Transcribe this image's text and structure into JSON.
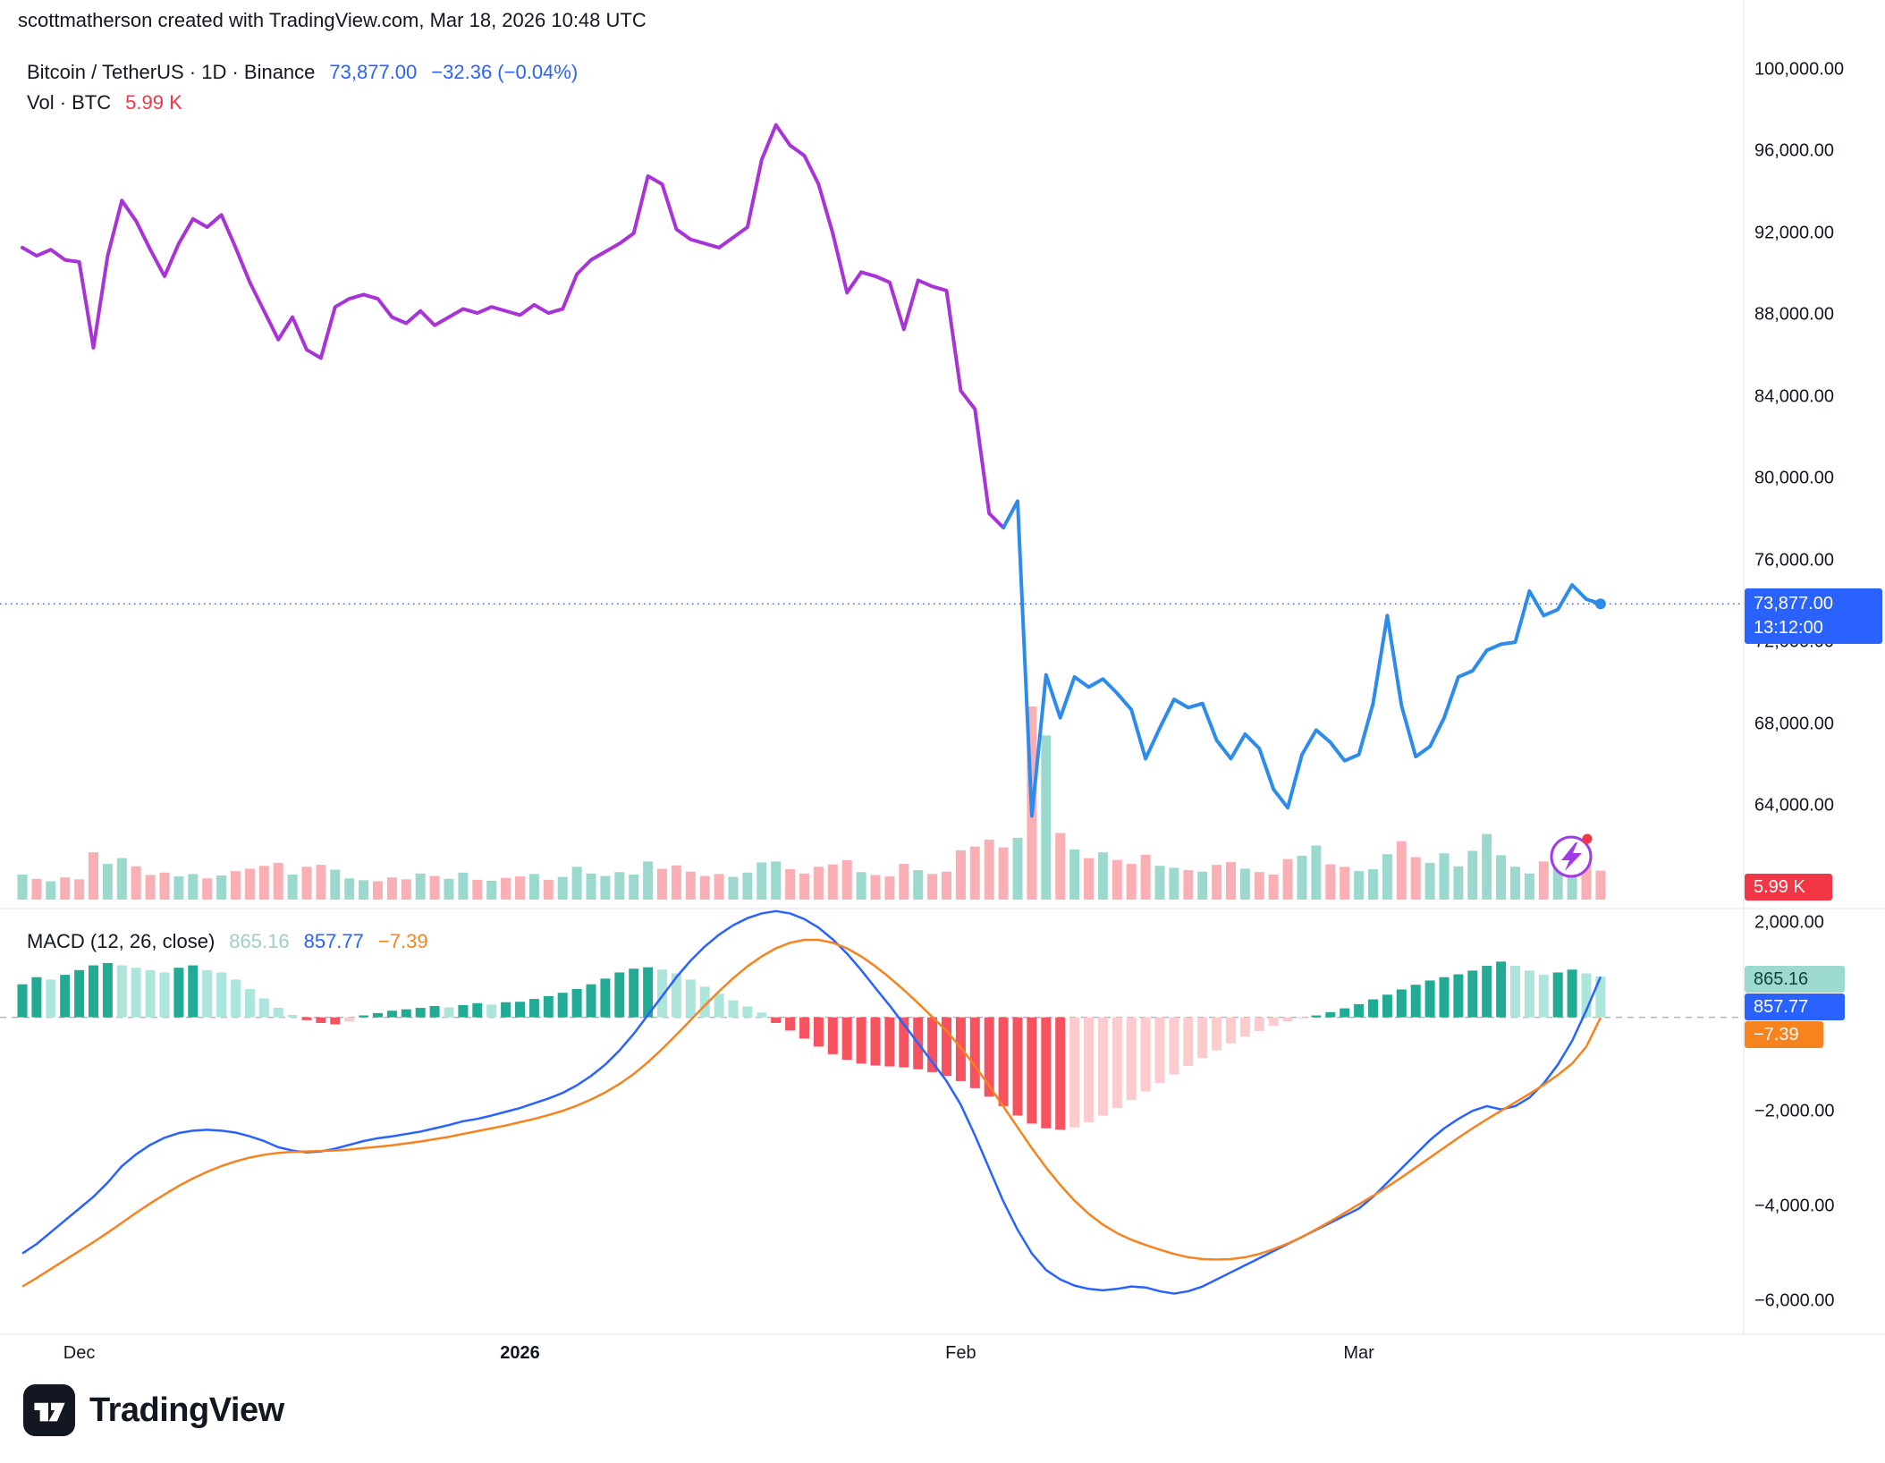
{
  "header": {
    "attribution": "scottmatherson created with TradingView.com, Mar 18, 2026 10:48 UTC"
  },
  "legend": {
    "title": "Bitcoin / TetherUS · 1D · Binance",
    "price": "73,877.00",
    "change": "−32.36 (−0.04%)",
    "vol_label": "Vol · BTC",
    "vol_value": "5.99 K"
  },
  "macd_legend": {
    "label": "MACD (12, 26, close)",
    "hist_value": "865.16",
    "macd_value": "857.77",
    "signal_value": "−7.39"
  },
  "axis_badges": {
    "price": "73,877.00",
    "countdown": "13:12:00",
    "volume": "5.99 K",
    "macd_hist": "865.16",
    "macd_line": "857.77",
    "macd_signal": "−7.39"
  },
  "footer": {
    "brand": "TradingView"
  },
  "colors": {
    "accent_blue": "#2962FF",
    "line_blue": "#2D8CEB",
    "line_purple": "#A833D6",
    "red": "#F23645",
    "orange": "#F7831F",
    "hist_pos_grow": "#22AB94",
    "hist_pos_fall": "#ACE5DC",
    "hist_neg_fall": "#F7525F",
    "hist_neg_grow": "#FCCBCD",
    "vol_up": "rgba(34,171,148,0.45)",
    "vol_down": "rgba(242,54,69,0.40)",
    "grid": "#E0E3EB",
    "zero_line": "#B2B5BE",
    "text": "#131722",
    "flash_purple": "#A13BE8"
  },
  "chart_data": {
    "type": "line",
    "title": "Bitcoin / TetherUS 1D line chart with Volume overlay and MACD (12, 26, close) panel",
    "legend_position": "top-left",
    "grid": false,
    "current_price": 73877,
    "price_color_split_index": 69,
    "price_range": {
      "top": 100000,
      "bottom": 64000
    },
    "macd_range": {
      "top": 2000,
      "bottom": -6000
    },
    "price_axis": [
      {
        "label": "100,000.00",
        "value": 100000
      },
      {
        "label": "96,000.00",
        "value": 96000
      },
      {
        "label": "92,000.00",
        "value": 92000
      },
      {
        "label": "88,000.00",
        "value": 88000
      },
      {
        "label": "84,000.00",
        "value": 84000
      },
      {
        "label": "80,000.00",
        "value": 80000
      },
      {
        "label": "76,000.00",
        "value": 76000
      },
      {
        "label": "72,000.00",
        "value": 72000
      },
      {
        "label": "68,000.00",
        "value": 68000
      },
      {
        "label": "64,000.00",
        "value": 64000
      }
    ],
    "macd_axis": [
      {
        "label": "2,000.00",
        "value": 2000
      },
      {
        "label": "−2,000.00",
        "value": -2000
      },
      {
        "label": "−4,000.00",
        "value": -4000
      },
      {
        "label": "−6,000.00",
        "value": -6000
      }
    ],
    "x_axis_labels": [
      {
        "label": "Dec",
        "index": 4,
        "bold": false
      },
      {
        "label": "2026",
        "index": 35,
        "bold": true
      },
      {
        "label": "Feb",
        "index": 66,
        "bold": false
      },
      {
        "label": "Mar",
        "index": 94,
        "bold": false
      }
    ],
    "series": {
      "price": [
        91300,
        90900,
        91200,
        90700,
        90600,
        86400,
        90900,
        93600,
        92600,
        91200,
        89900,
        91500,
        92700,
        92300,
        92900,
        91300,
        89600,
        88200,
        86800,
        87900,
        86300,
        85900,
        88400,
        88800,
        89000,
        88800,
        87900,
        87600,
        88200,
        87500,
        87900,
        88300,
        88100,
        88400,
        88200,
        88000,
        88500,
        88100,
        88300,
        90000,
        90700,
        91100,
        91500,
        92000,
        94800,
        94400,
        92200,
        91700,
        91500,
        91300,
        91800,
        92300,
        95600,
        97300,
        96300,
        95800,
        94400,
        92000,
        89100,
        90100,
        89900,
        89600,
        87300,
        89700,
        89400,
        89200,
        84300,
        83400,
        78300,
        77600,
        78900,
        63500,
        70400,
        68300,
        70300,
        69800,
        70200,
        69500,
        68700,
        66300,
        67800,
        69200,
        68800,
        69000,
        67200,
        66300,
        67500,
        66800,
        64800,
        63900,
        66500,
        67700,
        67100,
        66200,
        66500,
        69000,
        73300,
        68900,
        66400,
        66900,
        68300,
        70300,
        70600,
        71600,
        71900,
        72000,
        74500,
        73300,
        73600,
        74800,
        74100,
        73877
      ],
      "volume": [
        5200,
        4300,
        3800,
        4600,
        4200,
        9800,
        7400,
        8600,
        6900,
        5100,
        5600,
        4800,
        5300,
        4400,
        5000,
        5900,
        6400,
        7000,
        7600,
        5200,
        6800,
        7200,
        6200,
        4400,
        4000,
        3800,
        4600,
        4200,
        5400,
        4900,
        4300,
        5600,
        4100,
        3900,
        4500,
        4800,
        5300,
        4100,
        4700,
        6800,
        5400,
        4900,
        5700,
        5200,
        7900,
        6400,
        7100,
        5800,
        4900,
        5300,
        4700,
        5600,
        7700,
        7900,
        6300,
        5400,
        6800,
        7300,
        8200,
        5700,
        5100,
        4800,
        7400,
        6100,
        5300,
        5800,
        10200,
        11000,
        12400,
        10800,
        12800,
        40000,
        34000,
        13800,
        10400,
        8600,
        9800,
        8200,
        7400,
        9300,
        7000,
        6600,
        6100,
        5800,
        7200,
        7800,
        6400,
        5700,
        5200,
        8400,
        9100,
        11200,
        7300,
        6800,
        5900,
        6300,
        9400,
        12100,
        8800,
        7600,
        9600,
        6900,
        10100,
        13600,
        9200,
        6800,
        5400,
        7900,
        9400,
        8300,
        7700,
        5990
      ],
      "histogram": [
        700,
        850,
        800,
        900,
        1000,
        1100,
        1150,
        1100,
        1050,
        1000,
        950,
        1050,
        1100,
        1000,
        950,
        800,
        600,
        400,
        200,
        50,
        -60,
        -120,
        -150,
        -90,
        40,
        90,
        140,
        170,
        200,
        240,
        210,
        260,
        300,
        270,
        320,
        330,
        390,
        450,
        520,
        600,
        700,
        820,
        950,
        1030,
        1060,
        1010,
        930,
        800,
        650,
        500,
        360,
        230,
        100,
        -120,
        -280,
        -450,
        -620,
        -780,
        -900,
        -980,
        -1020,
        -1040,
        -1060,
        -1100,
        -1160,
        -1240,
        -1350,
        -1500,
        -1680,
        -1880,
        -2080,
        -2250,
        -2350,
        -2380,
        -2330,
        -2220,
        -2080,
        -1920,
        -1750,
        -1570,
        -1390,
        -1210,
        -1030,
        -860,
        -700,
        -550,
        -410,
        -290,
        -180,
        -90,
        -20,
        40,
        110,
        190,
        280,
        380,
        480,
        590,
        690,
        780,
        850,
        910,
        990,
        1090,
        1180,
        1090,
        990,
        900,
        950,
        1010,
        930,
        865.16
      ],
      "macd": [
        -5000,
        -4800,
        -4550,
        -4300,
        -4050,
        -3800,
        -3500,
        -3150,
        -2900,
        -2700,
        -2550,
        -2450,
        -2400,
        -2380,
        -2400,
        -2440,
        -2520,
        -2620,
        -2750,
        -2820,
        -2860,
        -2840,
        -2780,
        -2700,
        -2620,
        -2560,
        -2520,
        -2470,
        -2420,
        -2350,
        -2280,
        -2200,
        -2150,
        -2080,
        -2000,
        -1920,
        -1820,
        -1720,
        -1600,
        -1440,
        -1240,
        -1000,
        -700,
        -350,
        50,
        450,
        850,
        1200,
        1500,
        1750,
        1950,
        2100,
        2200,
        2250,
        2200,
        2080,
        1900,
        1650,
        1350,
        1000,
        620,
        250,
        -150,
        -550,
        -950,
        -1350,
        -1850,
        -2500,
        -3200,
        -3900,
        -4500,
        -5000,
        -5350,
        -5550,
        -5680,
        -5750,
        -5780,
        -5750,
        -5700,
        -5720,
        -5800,
        -5850,
        -5800,
        -5700,
        -5550,
        -5400,
        -5250,
        -5100,
        -4950,
        -4800,
        -4650,
        -4500,
        -4350,
        -4200,
        -4050,
        -3800,
        -3500,
        -3200,
        -2900,
        -2600,
        -2350,
        -2150,
        -1980,
        -1880,
        -1950,
        -1880,
        -1700,
        -1400,
        -1000,
        -500,
        150,
        857.77
      ],
      "signal": [
        -5700,
        -5520,
        -5330,
        -5140,
        -4950,
        -4760,
        -4560,
        -4350,
        -4140,
        -3940,
        -3750,
        -3570,
        -3410,
        -3270,
        -3150,
        -3050,
        -2970,
        -2910,
        -2870,
        -2850,
        -2840,
        -2830,
        -2820,
        -2800,
        -2770,
        -2740,
        -2710,
        -2670,
        -2630,
        -2580,
        -2530,
        -2470,
        -2410,
        -2350,
        -2290,
        -2220,
        -2150,
        -2070,
        -1980,
        -1870,
        -1740,
        -1590,
        -1410,
        -1200,
        -950,
        -670,
        -370,
        -60,
        250,
        550,
        830,
        1080,
        1290,
        1460,
        1580,
        1640,
        1640,
        1580,
        1460,
        1290,
        1080,
        840,
        580,
        300,
        10,
        -290,
        -640,
        -1030,
        -1450,
        -1890,
        -2330,
        -2770,
        -3180,
        -3550,
        -3880,
        -4160,
        -4390,
        -4570,
        -4710,
        -4820,
        -4920,
        -5010,
        -5080,
        -5120,
        -5130,
        -5120,
        -5080,
        -5010,
        -4910,
        -4790,
        -4650,
        -4490,
        -4320,
        -4140,
        -3960,
        -3780,
        -3590,
        -3390,
        -3180,
        -2970,
        -2760,
        -2550,
        -2350,
        -2160,
        -1980,
        -1800,
        -1620,
        -1430,
        -1220,
        -980,
        -620,
        -7.39
      ]
    }
  }
}
